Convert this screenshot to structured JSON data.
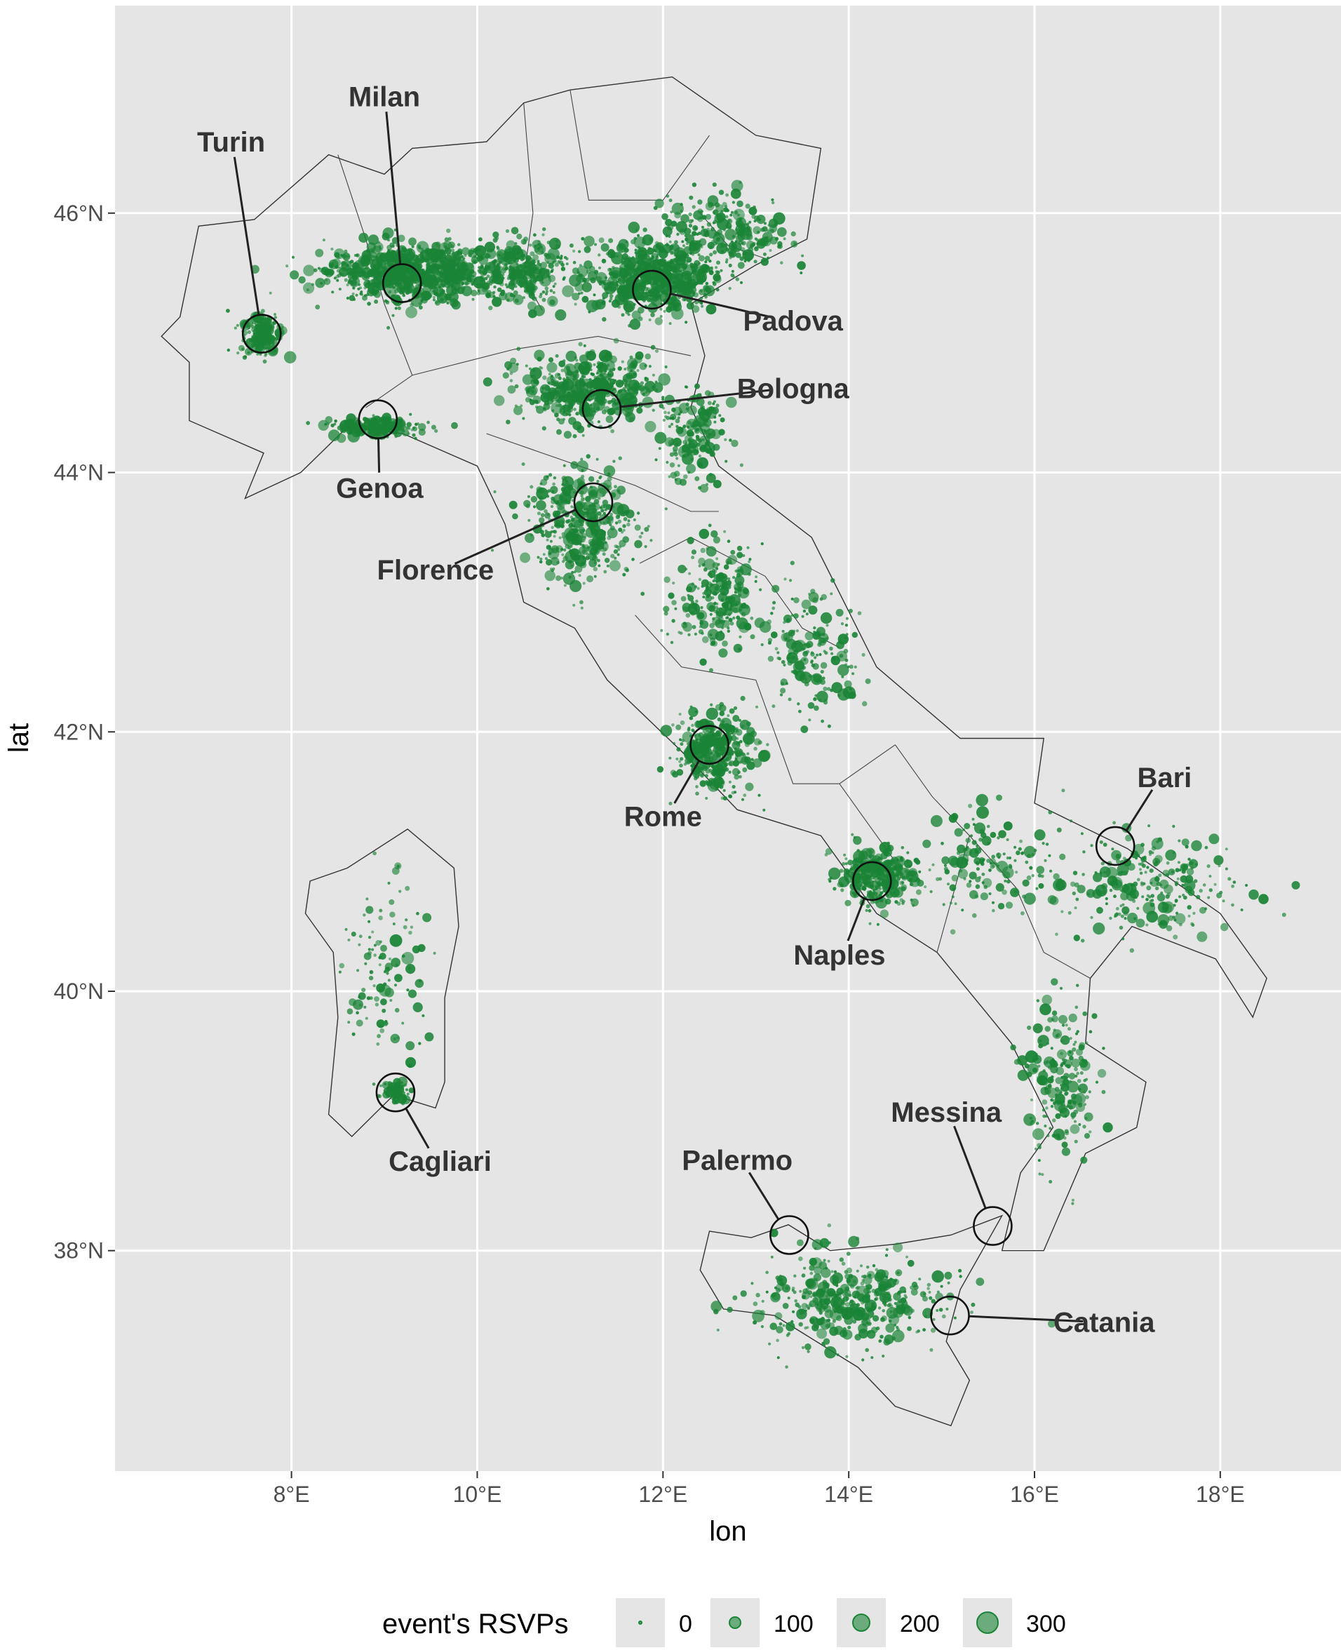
{
  "chart_data": {
    "type": "scatter",
    "x_axis": {
      "label": "lon",
      "range": [
        6.1,
        19.3
      ],
      "ticks": [
        {
          "value": 8,
          "label": "8°E"
        },
        {
          "value": 10,
          "label": "10°E"
        },
        {
          "value": 12,
          "label": "12°E"
        },
        {
          "value": 14,
          "label": "14°E"
        },
        {
          "value": 16,
          "label": "16°E"
        },
        {
          "value": 18,
          "label": "18°E"
        }
      ]
    },
    "y_axis": {
      "label": "lat",
      "range": [
        36.3,
        47.6
      ],
      "ticks": [
        {
          "value": 38,
          "label": "38°N"
        },
        {
          "value": 40,
          "label": "40°N"
        },
        {
          "value": 42,
          "label": "42°N"
        },
        {
          "value": 44,
          "label": "44°N"
        },
        {
          "value": 46,
          "label": "46°N"
        }
      ]
    },
    "grid": true,
    "point_color": "#1a8436",
    "panel_color": "#e5e5e5",
    "grid_color": "#ffffff",
    "legend": {
      "title": "event's RSVPs",
      "placement": "bottom",
      "entries": [
        {
          "label": "0",
          "value": 0
        },
        {
          "label": "100",
          "value": 100
        },
        {
          "label": "200",
          "value": 200
        },
        {
          "label": "300",
          "value": 300
        }
      ]
    },
    "cities": [
      {
        "name": "Turin",
        "lon": 7.68,
        "lat": 45.07,
        "label_lon": 7.35,
        "label_lat": 46.55
      },
      {
        "name": "Milan",
        "lon": 9.19,
        "lat": 45.46,
        "label_lon": 9.0,
        "label_lat": 46.9
      },
      {
        "name": "Padova",
        "lon": 11.88,
        "lat": 45.41,
        "label_lon": 13.4,
        "label_lat": 45.17
      },
      {
        "name": "Bologna",
        "lon": 11.34,
        "lat": 44.49,
        "label_lon": 13.4,
        "label_lat": 44.65
      },
      {
        "name": "Genoa",
        "lon": 8.93,
        "lat": 44.41,
        "label_lon": 8.95,
        "label_lat": 43.88
      },
      {
        "name": "Florence",
        "lon": 11.25,
        "lat": 43.77,
        "label_lon": 9.55,
        "label_lat": 43.25
      },
      {
        "name": "Rome",
        "lon": 12.5,
        "lat": 41.9,
        "label_lon": 12.0,
        "label_lat": 41.35
      },
      {
        "name": "Bari",
        "lon": 16.87,
        "lat": 41.12,
        "label_lon": 17.4,
        "label_lat": 41.65
      },
      {
        "name": "Naples",
        "lon": 14.25,
        "lat": 40.85,
        "label_lon": 13.9,
        "label_lat": 40.28
      },
      {
        "name": "Cagliari",
        "lon": 9.12,
        "lat": 39.22,
        "label_lon": 9.6,
        "label_lat": 38.69
      },
      {
        "name": "Messina",
        "lon": 15.55,
        "lat": 38.19,
        "label_lon": 15.05,
        "label_lat": 39.07
      },
      {
        "name": "Palermo",
        "lon": 13.36,
        "lat": 38.12,
        "label_lon": 12.8,
        "label_lat": 38.7
      },
      {
        "name": "Catania",
        "lon": 15.09,
        "lat": 37.5,
        "label_lon": 16.75,
        "label_lat": 37.45
      }
    ],
    "density_clusters": [
      {
        "lon": 9.3,
        "lat": 45.55,
        "sx": 0.75,
        "sy": 0.18,
        "n": 900
      },
      {
        "lon": 11.9,
        "lat": 45.5,
        "sx": 0.55,
        "sy": 0.22,
        "n": 650
      },
      {
        "lon": 12.7,
        "lat": 45.85,
        "sx": 0.55,
        "sy": 0.25,
        "n": 250
      },
      {
        "lon": 10.5,
        "lat": 45.55,
        "sx": 0.45,
        "sy": 0.2,
        "n": 300
      },
      {
        "lon": 11.2,
        "lat": 44.65,
        "sx": 0.6,
        "sy": 0.22,
        "n": 520
      },
      {
        "lon": 12.3,
        "lat": 44.3,
        "sx": 0.3,
        "sy": 0.3,
        "n": 180
      },
      {
        "lon": 7.68,
        "lat": 45.07,
        "sx": 0.18,
        "sy": 0.14,
        "n": 180
      },
      {
        "lon": 8.9,
        "lat": 44.35,
        "sx": 0.4,
        "sy": 0.06,
        "n": 180
      },
      {
        "lon": 11.1,
        "lat": 43.6,
        "sx": 0.5,
        "sy": 0.35,
        "n": 420
      },
      {
        "lon": 12.6,
        "lat": 43.05,
        "sx": 0.4,
        "sy": 0.35,
        "n": 260
      },
      {
        "lon": 12.55,
        "lat": 41.85,
        "sx": 0.35,
        "sy": 0.25,
        "n": 360
      },
      {
        "lon": 13.6,
        "lat": 42.6,
        "sx": 0.45,
        "sy": 0.4,
        "n": 180
      },
      {
        "lon": 14.3,
        "lat": 40.88,
        "sx": 0.35,
        "sy": 0.18,
        "n": 340
      },
      {
        "lon": 15.5,
        "lat": 41.0,
        "sx": 0.6,
        "sy": 0.3,
        "n": 160
      },
      {
        "lon": 17.2,
        "lat": 40.8,
        "sx": 0.75,
        "sy": 0.35,
        "n": 260
      },
      {
        "lon": 16.3,
        "lat": 39.3,
        "sx": 0.3,
        "sy": 0.5,
        "n": 220
      },
      {
        "lon": 14.0,
        "lat": 37.6,
        "sx": 0.85,
        "sy": 0.3,
        "n": 420
      },
      {
        "lon": 9.0,
        "lat": 40.1,
        "sx": 0.35,
        "sy": 0.65,
        "n": 120
      },
      {
        "lon": 9.12,
        "lat": 39.22,
        "sx": 0.12,
        "sy": 0.07,
        "n": 70
      }
    ],
    "regions": [
      {
        "name": "Italy",
        "outline": [
          [
            6.8,
            45.2
          ],
          [
            7.0,
            45.9
          ],
          [
            7.6,
            45.95
          ],
          [
            8.4,
            46.45
          ],
          [
            9.0,
            46.3
          ],
          [
            9.3,
            46.5
          ],
          [
            10.1,
            46.55
          ],
          [
            10.5,
            46.85
          ],
          [
            11.0,
            46.95
          ],
          [
            12.1,
            47.05
          ],
          [
            13.0,
            46.6
          ],
          [
            13.7,
            46.5
          ],
          [
            13.55,
            45.8
          ],
          [
            13.0,
            45.6
          ],
          [
            12.3,
            45.3
          ],
          [
            12.45,
            44.9
          ],
          [
            12.3,
            44.5
          ],
          [
            12.6,
            44.05
          ],
          [
            13.6,
            43.5
          ],
          [
            14.3,
            42.5
          ],
          [
            15.2,
            41.95
          ],
          [
            16.1,
            41.95
          ],
          [
            16.0,
            41.45
          ],
          [
            17.0,
            41.1
          ],
          [
            18.0,
            40.6
          ],
          [
            18.5,
            40.1
          ],
          [
            18.35,
            39.8
          ],
          [
            17.95,
            40.25
          ],
          [
            17.05,
            40.5
          ],
          [
            16.6,
            40.1
          ],
          [
            16.55,
            39.6
          ],
          [
            17.2,
            39.3
          ],
          [
            17.1,
            38.95
          ],
          [
            16.55,
            38.75
          ],
          [
            16.1,
            38.0
          ],
          [
            15.65,
            38.0
          ],
          [
            15.85,
            38.6
          ],
          [
            16.2,
            38.95
          ],
          [
            15.75,
            39.6
          ],
          [
            14.95,
            40.3
          ],
          [
            14.3,
            40.6
          ],
          [
            13.7,
            41.2
          ],
          [
            12.8,
            41.4
          ],
          [
            12.2,
            41.85
          ],
          [
            11.4,
            42.4
          ],
          [
            11.05,
            42.8
          ],
          [
            10.5,
            43.0
          ],
          [
            10.3,
            43.6
          ],
          [
            10.0,
            44.05
          ],
          [
            9.2,
            44.3
          ],
          [
            8.6,
            44.35
          ],
          [
            8.1,
            44.0
          ],
          [
            7.5,
            43.8
          ],
          [
            7.7,
            44.15
          ],
          [
            6.9,
            44.4
          ],
          [
            6.9,
            44.85
          ],
          [
            6.6,
            45.05
          ]
        ]
      },
      {
        "name": "Sicily",
        "outline": [
          [
            12.4,
            37.85
          ],
          [
            12.5,
            38.15
          ],
          [
            12.95,
            38.1
          ],
          [
            13.35,
            38.2
          ],
          [
            13.8,
            38.0
          ],
          [
            14.5,
            38.05
          ],
          [
            15.1,
            38.12
          ],
          [
            15.65,
            38.27
          ],
          [
            15.2,
            37.7
          ],
          [
            15.05,
            37.3
          ],
          [
            15.3,
            37.0
          ],
          [
            15.1,
            36.65
          ],
          [
            14.5,
            36.8
          ],
          [
            14.1,
            37.1
          ],
          [
            13.2,
            37.5
          ],
          [
            12.65,
            37.55
          ]
        ]
      },
      {
        "name": "Sardinia",
        "outline": [
          [
            8.2,
            40.85
          ],
          [
            8.6,
            40.95
          ],
          [
            9.25,
            41.25
          ],
          [
            9.75,
            40.95
          ],
          [
            9.8,
            40.5
          ],
          [
            9.65,
            39.95
          ],
          [
            9.65,
            39.3
          ],
          [
            9.55,
            39.1
          ],
          [
            9.1,
            39.2
          ],
          [
            8.65,
            38.88
          ],
          [
            8.4,
            39.05
          ],
          [
            8.5,
            39.8
          ],
          [
            8.45,
            40.3
          ],
          [
            8.15,
            40.6
          ]
        ]
      }
    ],
    "inner_borders": [
      [
        [
          8.5,
          46.45
        ],
        [
          8.8,
          45.8
        ],
        [
          9.0,
          45.3
        ],
        [
          9.3,
          44.75
        ],
        [
          8.8,
          44.5
        ]
      ],
      [
        [
          9.3,
          44.75
        ],
        [
          10.4,
          44.95
        ],
        [
          11.3,
          45.05
        ],
        [
          12.3,
          44.9
        ]
      ],
      [
        [
          10.5,
          46.85
        ],
        [
          10.6,
          46.0
        ],
        [
          10.5,
          45.5
        ],
        [
          10.7,
          45.25
        ]
      ],
      [
        [
          11.0,
          46.95
        ],
        [
          11.2,
          46.1
        ],
        [
          12.0,
          46.1
        ],
        [
          12.5,
          46.6
        ]
      ],
      [
        [
          12.4,
          46.0
        ],
        [
          12.7,
          45.75
        ],
        [
          13.1,
          45.65
        ]
      ],
      [
        [
          10.1,
          44.3
        ],
        [
          10.9,
          44.1
        ],
        [
          11.7,
          43.9
        ],
        [
          12.3,
          43.7
        ],
        [
          12.6,
          43.7
        ]
      ],
      [
        [
          11.75,
          43.3
        ],
        [
          12.3,
          43.5
        ],
        [
          13.1,
          43.2
        ],
        [
          13.5,
          42.8
        ],
        [
          13.9,
          42.65
        ]
      ],
      [
        [
          11.7,
          42.9
        ],
        [
          12.2,
          42.5
        ],
        [
          13.0,
          42.4
        ],
        [
          13.4,
          41.6
        ],
        [
          13.9,
          41.6
        ],
        [
          14.5,
          41.9
        ]
      ],
      [
        [
          14.5,
          41.9
        ],
        [
          14.9,
          41.5
        ],
        [
          15.3,
          41.2
        ],
        [
          14.95,
          40.3
        ]
      ],
      [
        [
          15.3,
          41.2
        ],
        [
          15.8,
          40.8
        ],
        [
          16.1,
          40.3
        ],
        [
          16.6,
          40.1
        ]
      ],
      [
        [
          13.9,
          41.6
        ],
        [
          14.2,
          41.3
        ],
        [
          14.5,
          41.0
        ]
      ]
    ]
  }
}
